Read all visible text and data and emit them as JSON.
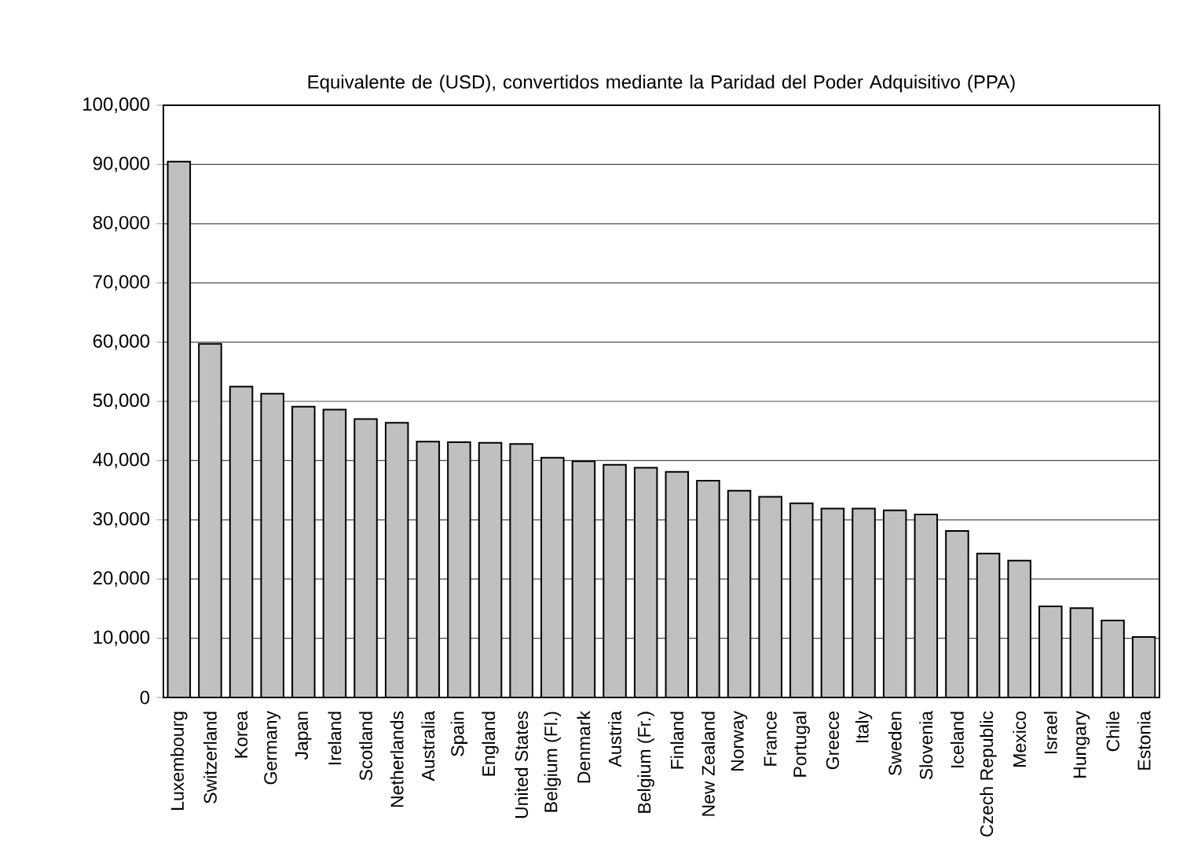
{
  "chart_data": {
    "type": "bar",
    "title": "Equivalente de (USD), convertidos mediante la Paridad del Poder Adquisitivo (PPA)",
    "categories": [
      "Luxembourg",
      "Switzerland",
      "Korea",
      "Germany",
      "Japan",
      "Ireland",
      "Scotland",
      "Netherlands",
      "Australia",
      "Spain",
      "England",
      "United States",
      "Belgium (Fl.)",
      "Denmark",
      "Austria",
      "Belgium (Fr.)",
      "Finland",
      "New Zealand",
      "Norway",
      "France",
      "Portugal",
      "Greece",
      "Italy",
      "Sweden",
      "Slovenia",
      "Iceland",
      "Czech Republic",
      "Mexico",
      "Israel",
      "Hungary",
      "Chile",
      "Estonia"
    ],
    "values": [
      90500,
      59700,
      52500,
      51300,
      49100,
      48600,
      47000,
      46400,
      43200,
      43100,
      43000,
      42800,
      40500,
      39900,
      39300,
      38800,
      38100,
      36600,
      34900,
      33900,
      32800,
      31900,
      31900,
      31600,
      30900,
      28100,
      24300,
      23100,
      15400,
      15100,
      13000,
      10200
    ],
    "color": "#c0c0c0",
    "ylim": [
      0,
      100000
    ],
    "yticks": [
      {
        "value": 0,
        "label": "0"
      },
      {
        "value": 10000,
        "label": "10,000"
      },
      {
        "value": 20000,
        "label": "20,000"
      },
      {
        "value": 30000,
        "label": "30,000"
      },
      {
        "value": 40000,
        "label": "40,000"
      },
      {
        "value": 50000,
        "label": "50,000"
      },
      {
        "value": 60000,
        "label": "60,000"
      },
      {
        "value": 70000,
        "label": "70,000"
      },
      {
        "value": 80000,
        "label": "80,000"
      },
      {
        "value": 90000,
        "label": "90,000"
      },
      {
        "value": 100000,
        "label": "100,000"
      }
    ],
    "grid": "y"
  }
}
